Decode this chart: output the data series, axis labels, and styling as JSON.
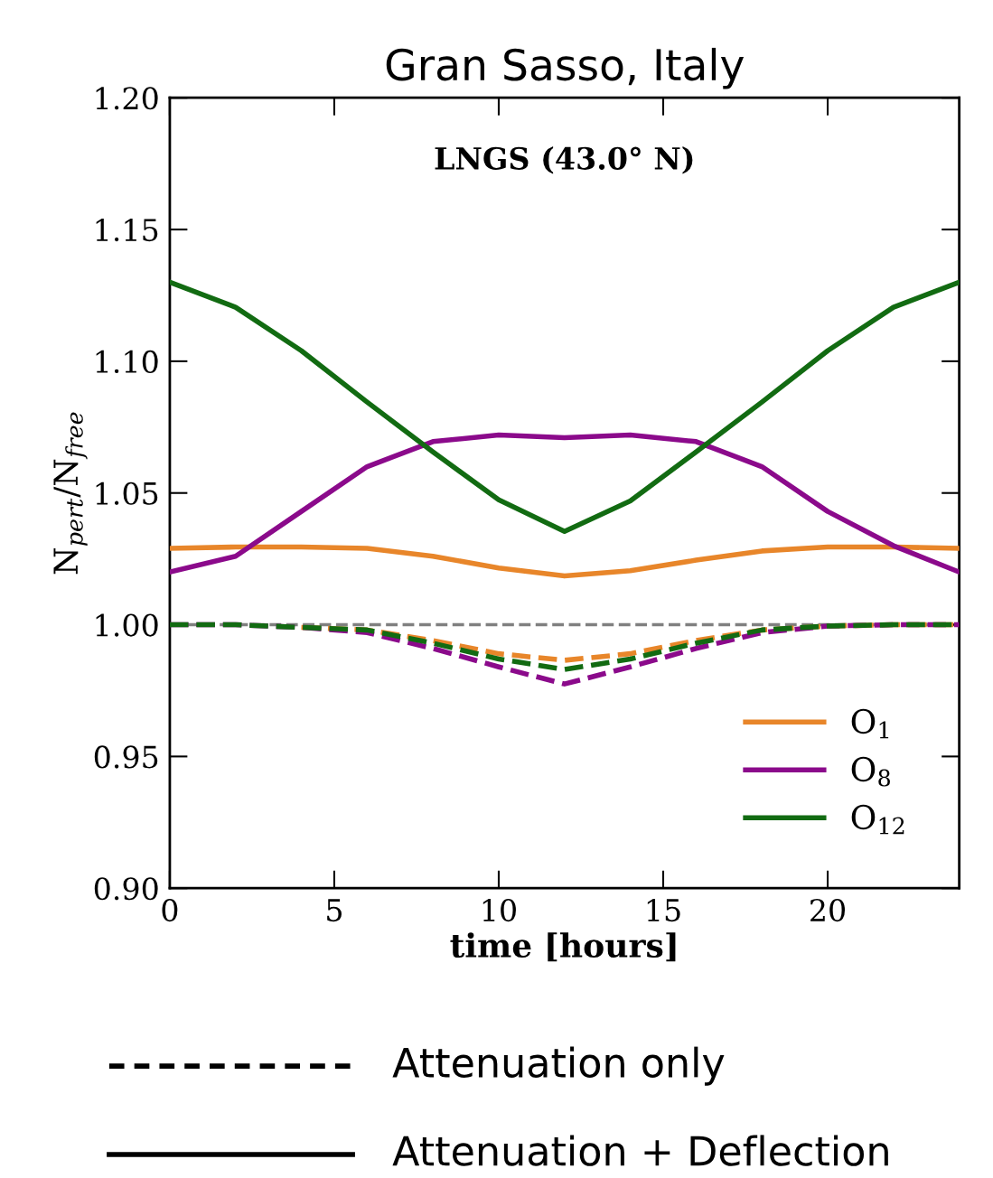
{
  "chart_data": {
    "type": "line",
    "title": "Gran Sasso, Italy",
    "xlabel": "time [hours]",
    "ylabel": "N$_{pert}$/N$_{free}$",
    "annotations": [
      "LNGS (43.0° N)",
      "Attenuation only",
      "Attenuation + Deflection"
    ],
    "x": [
      0,
      2,
      4,
      6,
      8,
      10,
      12,
      14,
      16,
      18,
      20,
      22,
      24
    ],
    "series": [
      {
        "name": "O$_{1}$",
        "color": "#e8862a",
        "line_style": "solid",
        "values": [
          1.029,
          1.0295,
          1.0295,
          1.029,
          1.026,
          1.0215,
          1.0185,
          1.0205,
          1.0245,
          1.028,
          1.0295,
          1.0295,
          1.029
        ]
      },
      {
        "name": "O$_{8}$",
        "color": "#8b0a8b",
        "line_style": "solid",
        "values": [
          1.02,
          1.026,
          1.043,
          1.06,
          1.0695,
          1.072,
          1.071,
          1.072,
          1.0695,
          1.06,
          1.043,
          1.03,
          1.02
        ]
      },
      {
        "name": "O$_{12}$",
        "color": "#126b12",
        "line_style": "solid",
        "values": [
          1.13,
          1.1205,
          1.104,
          1.0845,
          1.0656,
          1.0474,
          1.0354,
          1.047,
          1.0656,
          1.0845,
          1.104,
          1.1205,
          1.13
        ]
      },
      {
        "color": "#e8862a",
        "line_style": "dashed",
        "values": [
          null,
          null,
          0.999,
          0.998,
          0.994,
          0.989,
          0.9865,
          0.989,
          0.994,
          0.998,
          0.9995,
          1.0,
          1.0
        ]
      },
      {
        "color": "#8b0a8b",
        "line_style": "dashed",
        "values": [
          1.0,
          1.0,
          0.999,
          0.997,
          0.991,
          0.984,
          0.9775,
          0.984,
          0.991,
          0.997,
          0.9995,
          1.0,
          1.0
        ]
      },
      {
        "color": "#126b12",
        "line_style": "dashed",
        "values": [
          1.0,
          1.0,
          0.999,
          0.998,
          0.993,
          0.987,
          0.983,
          0.987,
          0.993,
          0.998,
          0.9995,
          1.0,
          1.0
        ]
      }
    ],
    "ref_lines": [
      {
        "axis": "y",
        "value": 1.0,
        "color": "#808080",
        "line_style": "dashed"
      }
    ],
    "xlim": [
      0,
      24
    ],
    "xticks": [
      0,
      5,
      10,
      15,
      20
    ],
    "ylim": [
      0.9,
      1.2
    ],
    "yticks": [
      {
        "value": 0.9,
        "label": "0.90"
      },
      {
        "value": 0.95,
        "label": "0.95"
      },
      {
        "value": 1.0,
        "label": "1.00"
      },
      {
        "value": 1.05,
        "label": "1.05"
      },
      {
        "value": 1.1,
        "label": "1.10"
      },
      {
        "value": 1.15,
        "label": "1.15"
      },
      {
        "value": 1.2,
        "label": "1.20"
      }
    ],
    "grid": false,
    "legend": "bottom right"
  }
}
